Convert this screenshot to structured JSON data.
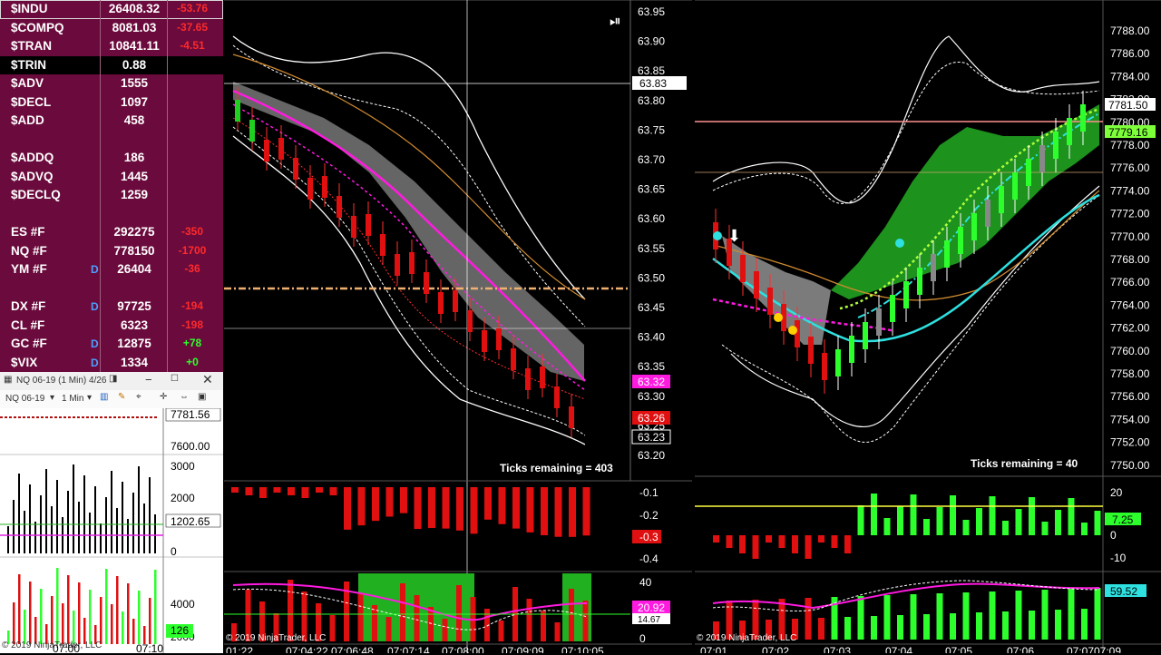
{
  "quotes": [
    {
      "symbol": "$INDU",
      "value": "26408.32",
      "change": "-53.76",
      "chg_color": "#ff2a2a"
    },
    {
      "symbol": "$COMPQ",
      "value": "8081.03",
      "change": "-37.65",
      "chg_color": "#ff2a2a"
    },
    {
      "symbol": "$TRAN",
      "value": "10841.11",
      "change": "-4.51",
      "chg_color": "#ff2a2a"
    },
    {
      "symbol": "$TRIN",
      "value": "0.88",
      "change": "",
      "chg_color": "#ffffff"
    },
    {
      "symbol": "$ADV",
      "value": "1555",
      "change": "",
      "chg_color": "#ffffff"
    },
    {
      "symbol": "$DECL",
      "value": "1097",
      "change": "",
      "chg_color": "#ffffff"
    },
    {
      "symbol": "$ADD",
      "value": "458",
      "change": "",
      "chg_color": "#ffffff"
    },
    {
      "symbol": "",
      "value": "",
      "change": "",
      "chg_color": "#ffffff"
    },
    {
      "symbol": "$ADDQ",
      "value": "186",
      "change": "",
      "chg_color": "#ffffff"
    },
    {
      "symbol": "$ADVQ",
      "value": "1445",
      "change": "",
      "chg_color": "#ffffff"
    },
    {
      "symbol": "$DECLQ",
      "value": "1259",
      "change": "",
      "chg_color": "#ffffff"
    },
    {
      "symbol": "",
      "value": "",
      "change": "",
      "chg_color": "#ffffff"
    },
    {
      "symbol": "ES #F",
      "value": "292275",
      "change": "-350",
      "chg_color": "#ff2a2a"
    },
    {
      "symbol": "NQ #F",
      "value": "778150",
      "change": "-1700",
      "chg_color": "#ff2a2a"
    },
    {
      "symbol": "YM #F",
      "value": "26404",
      "change": "-36",
      "chg_color": "#ff2a2a",
      "flag": "D"
    },
    {
      "symbol": "",
      "value": "",
      "change": "",
      "chg_color": "#ffffff"
    },
    {
      "symbol": "DX #F",
      "value": "97725",
      "change": "-194",
      "chg_color": "#ff2a2a",
      "flag": "D"
    },
    {
      "symbol": "CL #F",
      "value": "6323",
      "change": "-198",
      "chg_color": "#ff2a2a"
    },
    {
      "symbol": "GC #F",
      "value": "12875",
      "change": "+78",
      "chg_color": "#2dff2d",
      "flag": "D"
    },
    {
      "symbol": "$VIX",
      "value": "1334",
      "change": "+0",
      "chg_color": "#2dff2d",
      "flag": "D"
    }
  ],
  "mini": {
    "title": "NQ 06-19 (1 Min)  4/26",
    "instrument": "NQ 06-19",
    "interval": "1 Min",
    "price_tags": [
      "7781.56",
      "7600.00"
    ],
    "volume_axis": [
      "3000",
      "2000",
      "1000",
      "0"
    ],
    "volume_tag": "1202.65",
    "lower_axis": [
      "4000",
      "2000"
    ],
    "lower_tag": "126",
    "copyright": "© 2019 NinjaTrader, LLC",
    "time_labels": [
      "07:00",
      "07:10"
    ]
  },
  "chart1": {
    "price_axis": [
      "63.95",
      "63.90",
      "63.85",
      "63.80",
      "63.75",
      "63.70",
      "63.65",
      "63.60",
      "63.55",
      "63.50",
      "63.45",
      "63.40",
      "63.35",
      "63.30",
      "63.25",
      "63.20"
    ],
    "crosshair_tag": "63.83",
    "price_tags": [
      "63.32",
      "63.26",
      "63.23"
    ],
    "ticks_remaining": "Ticks remaining = 403",
    "osc_axis": [
      "-0.1",
      "-0.2",
      "-0.3",
      "-0.4"
    ],
    "osc_tag": "-0.3",
    "stoch_axis": [
      "40",
      "0"
    ],
    "stoch_tags": [
      "20.92",
      "14.67"
    ],
    "copyright": "© 2019 NinjaTrader, LLC",
    "time_labels": [
      "01:22",
      "07:04:22",
      "07:06:48",
      "07:07:14",
      "07:08:00",
      "07:09:09",
      "07:10:05"
    ]
  },
  "chart2": {
    "price_axis": [
      "7788.00",
      "7786.00",
      "7784.00",
      "7782.00",
      "7780.00",
      "7778.00",
      "7776.00",
      "7774.00",
      "7772.00",
      "7770.00",
      "7768.00",
      "7766.00",
      "7764.00",
      "7762.00",
      "7760.00",
      "7758.00",
      "7756.00",
      "7754.00",
      "7752.00",
      "7750.00"
    ],
    "price_tags": [
      "7781.50",
      "7779.16"
    ],
    "ticks_remaining": "Ticks remaining = 40",
    "osc_axis": [
      "20",
      "0",
      "-10"
    ],
    "osc_tag": "7.25",
    "lower_tag": "59.52",
    "copyright": "© 2019 NinjaTrader, LLC",
    "time_labels": [
      "07:01",
      "07:02",
      "07:03",
      "07:04",
      "07:05",
      "07:06",
      "07:07",
      "07:09"
    ]
  }
}
